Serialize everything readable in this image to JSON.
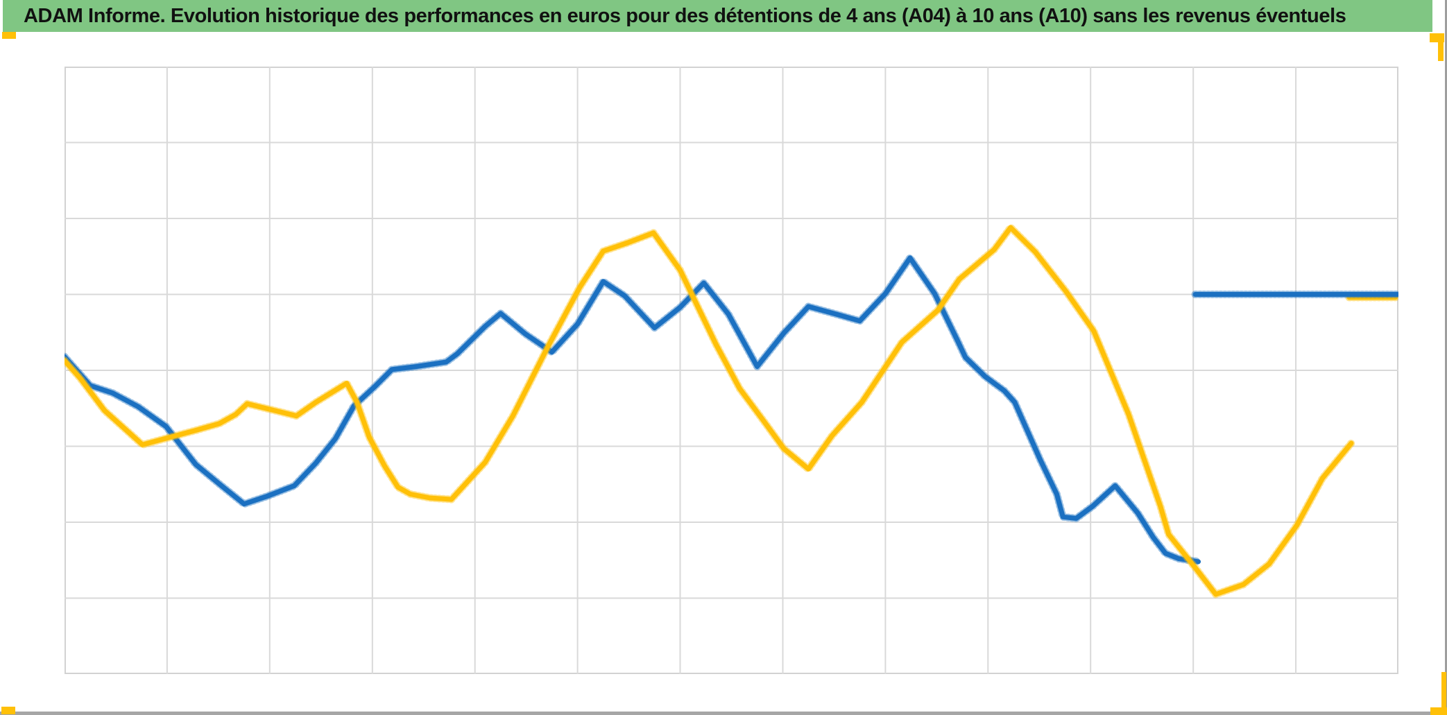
{
  "header": {
    "title": "ADAM Informe. Evolution historique des performances en euros pour des détentions de 4 ans (A04) à 10 ans (A10) sans les revenus éventuels",
    "background_color": "#80C683",
    "text_color": "#111111"
  },
  "chrome": {
    "right_edge_color": "#9e9e9e",
    "bottom_edge_color": "#a6a6a6",
    "accent_color": "#FFC008"
  },
  "chart_data": {
    "type": "line",
    "title": "ADAM Informe. Evolution historique des performances en euros pour des détentions de 4 ans (A04) à 10 ans (A10) sans les revenus éventuels",
    "xlabel": "",
    "ylabel": "",
    "tick_labels_visible": false,
    "legend": "none",
    "grid": {
      "columns": 13,
      "rows": 8,
      "line_color": "#d9d9d9",
      "border_color": "#d2d2d2",
      "grid_on": true
    },
    "units": {
      "x": "grid column index, 0 = left border, 13 = right border",
      "y": "grid rows from bottom border, 0 = bottom, 8 = top"
    },
    "series": [
      {
        "name": "serie-bleue-detention",
        "color": "#1B70C1",
        "points": [
          [
            0,
            4.18
          ],
          [
            0.25,
            3.8
          ],
          [
            0.47,
            3.7
          ],
          [
            0.72,
            3.52
          ],
          [
            0.99,
            3.26
          ],
          [
            1.28,
            2.76
          ],
          [
            1.53,
            2.48
          ],
          [
            1.75,
            2.24
          ],
          [
            1.97,
            2.34
          ],
          [
            2.24,
            2.48
          ],
          [
            2.45,
            2.78
          ],
          [
            2.64,
            3.1
          ],
          [
            2.82,
            3.53
          ],
          [
            3.02,
            3.78
          ],
          [
            3.19,
            4.01
          ],
          [
            3.43,
            4.05
          ],
          [
            3.72,
            4.11
          ],
          [
            3.83,
            4.22
          ],
          [
            4.1,
            4.58
          ],
          [
            4.25,
            4.75
          ],
          [
            4.49,
            4.48
          ],
          [
            4.75,
            4.24
          ],
          [
            5.0,
            4.61
          ],
          [
            5.25,
            5.17
          ],
          [
            5.46,
            4.98
          ],
          [
            5.75,
            4.56
          ],
          [
            6.0,
            4.83
          ],
          [
            6.23,
            5.15
          ],
          [
            6.47,
            4.74
          ],
          [
            6.75,
            4.05
          ],
          [
            7.01,
            4.49
          ],
          [
            7.25,
            4.84
          ],
          [
            7.52,
            4.74
          ],
          [
            7.75,
            4.65
          ],
          [
            8.0,
            5.01
          ],
          [
            8.24,
            5.48
          ],
          [
            8.48,
            5.01
          ],
          [
            8.7,
            4.4
          ],
          [
            8.78,
            4.17
          ],
          [
            8.97,
            3.92
          ],
          [
            9.16,
            3.73
          ],
          [
            9.26,
            3.58
          ],
          [
            9.51,
            2.82
          ],
          [
            9.67,
            2.37
          ],
          [
            9.73,
            2.07
          ],
          [
            9.86,
            2.05
          ],
          [
            10.02,
            2.21
          ],
          [
            10.24,
            2.48
          ],
          [
            10.46,
            2.12
          ],
          [
            10.61,
            1.8
          ],
          [
            10.73,
            1.59
          ],
          [
            10.86,
            1.52
          ],
          [
            11.05,
            1.48
          ]
        ]
      },
      {
        "name": "serie-jaune-detention",
        "color": "#FFC008",
        "points": [
          [
            0,
            4.13
          ],
          [
            0.15,
            3.9
          ],
          [
            0.39,
            3.47
          ],
          [
            0.76,
            3.02
          ],
          [
            1.03,
            3.12
          ],
          [
            1.28,
            3.21
          ],
          [
            1.51,
            3.3
          ],
          [
            1.67,
            3.42
          ],
          [
            1.78,
            3.56
          ],
          [
            2.08,
            3.46
          ],
          [
            2.26,
            3.4
          ],
          [
            2.45,
            3.58
          ],
          [
            2.75,
            3.83
          ],
          [
            2.85,
            3.58
          ],
          [
            2.97,
            3.12
          ],
          [
            3.12,
            2.74
          ],
          [
            3.25,
            2.46
          ],
          [
            3.37,
            2.37
          ],
          [
            3.56,
            2.32
          ],
          [
            3.77,
            2.3
          ],
          [
            4.1,
            2.79
          ],
          [
            4.37,
            3.4
          ],
          [
            4.71,
            4.31
          ],
          [
            5.02,
            5.09
          ],
          [
            5.25,
            5.57
          ],
          [
            5.49,
            5.68
          ],
          [
            5.74,
            5.81
          ],
          [
            6.0,
            5.32
          ],
          [
            6.35,
            4.34
          ],
          [
            6.58,
            3.76
          ],
          [
            6.81,
            3.34
          ],
          [
            7.01,
            2.97
          ],
          [
            7.25,
            2.7
          ],
          [
            7.48,
            3.14
          ],
          [
            7.77,
            3.58
          ],
          [
            8.16,
            4.37
          ],
          [
            8.51,
            4.79
          ],
          [
            8.72,
            5.2
          ],
          [
            9.06,
            5.59
          ],
          [
            9.22,
            5.88
          ],
          [
            9.46,
            5.56
          ],
          [
            9.76,
            5.04
          ],
          [
            10.03,
            4.52
          ],
          [
            10.37,
            3.42
          ],
          [
            10.68,
            2.21
          ],
          [
            10.76,
            1.84
          ],
          [
            11.02,
            1.4
          ],
          [
            11.22,
            1.05
          ],
          [
            11.49,
            1.18
          ],
          [
            11.74,
            1.45
          ],
          [
            12.01,
            1.96
          ],
          [
            12.26,
            2.58
          ],
          [
            12.54,
            3.04
          ]
        ]
      },
      {
        "name": "segment-plat-jaune",
        "color": "#FFC008",
        "points": [
          [
            12.52,
            4.96
          ],
          [
            12.97,
            4.96
          ]
        ]
      },
      {
        "name": "segment-plat-bleu",
        "color": "#1B70C1",
        "points": [
          [
            11.02,
            5.0
          ],
          [
            12.99,
            5.0
          ]
        ]
      }
    ]
  }
}
